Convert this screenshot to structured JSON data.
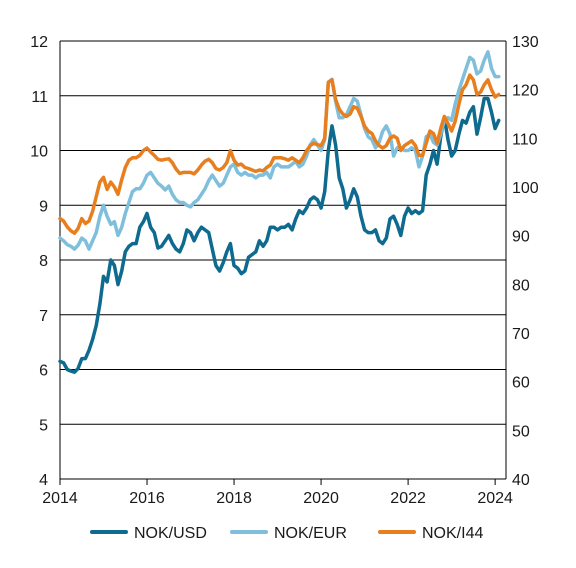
{
  "chart_data": {
    "type": "line",
    "title": "",
    "xlabel": "",
    "ylabel_left": "",
    "ylabel_right": "",
    "grid": true,
    "legend_position": "bottom",
    "xlim": [
      2014,
      2024.25
    ],
    "ylim_left": [
      4,
      12
    ],
    "ylim_right": [
      40,
      130
    ],
    "x_ticks": [
      "2014",
      "2016",
      "2018",
      "2020",
      "2022",
      "2024"
    ],
    "y_ticks_left": [
      "4",
      "5",
      "6",
      "7",
      "8",
      "9",
      "10",
      "11",
      "12"
    ],
    "y_ticks_right": [
      "40",
      "50",
      "60",
      "70",
      "80",
      "90",
      "100",
      "110",
      "120",
      "130"
    ],
    "series": [
      {
        "name": "NOK/USD",
        "axis": "left",
        "color": "#0e6b8f",
        "x": [
          2014.0,
          2014.083,
          2014.167,
          2014.25,
          2014.333,
          2014.417,
          2014.5,
          2014.583,
          2014.667,
          2014.75,
          2014.833,
          2014.917,
          2015.0,
          2015.083,
          2015.167,
          2015.25,
          2015.333,
          2015.417,
          2015.5,
          2015.583,
          2015.667,
          2015.75,
          2015.833,
          2015.917,
          2016.0,
          2016.083,
          2016.167,
          2016.25,
          2016.333,
          2016.417,
          2016.5,
          2016.583,
          2016.667,
          2016.75,
          2016.833,
          2016.917,
          2017.0,
          2017.083,
          2017.167,
          2017.25,
          2017.333,
          2017.417,
          2017.5,
          2017.583,
          2017.667,
          2017.75,
          2017.833,
          2017.917,
          2018.0,
          2018.083,
          2018.167,
          2018.25,
          2018.333,
          2018.417,
          2018.5,
          2018.583,
          2018.667,
          2018.75,
          2018.833,
          2018.917,
          2019.0,
          2019.083,
          2019.167,
          2019.25,
          2019.333,
          2019.417,
          2019.5,
          2019.583,
          2019.667,
          2019.75,
          2019.833,
          2019.917,
          2020.0,
          2020.083,
          2020.167,
          2020.25,
          2020.333,
          2020.417,
          2020.5,
          2020.583,
          2020.667,
          2020.75,
          2020.833,
          2020.917,
          2021.0,
          2021.083,
          2021.167,
          2021.25,
          2021.333,
          2021.417,
          2021.5,
          2021.583,
          2021.667,
          2021.75,
          2021.833,
          2021.917,
          2022.0,
          2022.083,
          2022.167,
          2022.25,
          2022.333,
          2022.417,
          2022.5,
          2022.583,
          2022.667,
          2022.75,
          2022.833,
          2022.917,
          2023.0,
          2023.083,
          2023.167,
          2023.25,
          2023.333,
          2023.417,
          2023.5,
          2023.583,
          2023.667,
          2023.75,
          2023.833,
          2023.917,
          2024.0,
          2024.083
        ],
        "y": [
          6.15,
          6.12,
          6.0,
          5.97,
          5.95,
          6.02,
          6.2,
          6.2,
          6.35,
          6.55,
          6.8,
          7.2,
          7.7,
          7.6,
          8.0,
          7.9,
          7.55,
          7.8,
          8.15,
          8.25,
          8.3,
          8.3,
          8.6,
          8.7,
          8.85,
          8.6,
          8.5,
          8.22,
          8.25,
          8.35,
          8.45,
          8.3,
          8.2,
          8.15,
          8.3,
          8.55,
          8.5,
          8.35,
          8.5,
          8.6,
          8.55,
          8.5,
          8.2,
          7.9,
          7.8,
          7.95,
          8.15,
          8.3,
          7.9,
          7.85,
          7.75,
          7.8,
          8.05,
          8.1,
          8.15,
          8.35,
          8.25,
          8.35,
          8.6,
          8.6,
          8.55,
          8.6,
          8.6,
          8.65,
          8.55,
          8.75,
          8.9,
          8.85,
          8.95,
          9.1,
          9.15,
          9.1,
          8.95,
          9.25,
          10.0,
          10.45,
          10.1,
          9.5,
          9.3,
          8.95,
          9.1,
          9.3,
          9.15,
          8.8,
          8.55,
          8.5,
          8.5,
          8.55,
          8.35,
          8.3,
          8.4,
          8.75,
          8.8,
          8.65,
          8.45,
          8.8,
          8.95,
          8.85,
          8.9,
          8.85,
          8.9,
          9.55,
          9.75,
          10.0,
          9.75,
          10.25,
          10.6,
          10.2,
          9.9,
          10.0,
          10.3,
          10.55,
          10.5,
          10.7,
          10.8,
          10.3,
          10.6,
          10.95,
          10.95,
          10.7,
          10.4,
          10.55
        ]
      },
      {
        "name": "NOK/EUR",
        "axis": "left",
        "color": "#7fbfdc",
        "x": [
          2014.0,
          2014.083,
          2014.167,
          2014.25,
          2014.333,
          2014.417,
          2014.5,
          2014.583,
          2014.667,
          2014.75,
          2014.833,
          2014.917,
          2015.0,
          2015.083,
          2015.167,
          2015.25,
          2015.333,
          2015.417,
          2015.5,
          2015.583,
          2015.667,
          2015.75,
          2015.833,
          2015.917,
          2016.0,
          2016.083,
          2016.167,
          2016.25,
          2016.333,
          2016.417,
          2016.5,
          2016.583,
          2016.667,
          2016.75,
          2016.833,
          2016.917,
          2017.0,
          2017.083,
          2017.167,
          2017.25,
          2017.333,
          2017.417,
          2017.5,
          2017.583,
          2017.667,
          2017.75,
          2017.833,
          2017.917,
          2018.0,
          2018.083,
          2018.167,
          2018.25,
          2018.333,
          2018.417,
          2018.5,
          2018.583,
          2018.667,
          2018.75,
          2018.833,
          2018.917,
          2019.0,
          2019.083,
          2019.167,
          2019.25,
          2019.333,
          2019.417,
          2019.5,
          2019.583,
          2019.667,
          2019.75,
          2019.833,
          2019.917,
          2020.0,
          2020.083,
          2020.167,
          2020.25,
          2020.333,
          2020.417,
          2020.5,
          2020.583,
          2020.667,
          2020.75,
          2020.833,
          2020.917,
          2021.0,
          2021.083,
          2021.167,
          2021.25,
          2021.333,
          2021.417,
          2021.5,
          2021.583,
          2021.667,
          2021.75,
          2021.833,
          2021.917,
          2022.0,
          2022.083,
          2022.167,
          2022.25,
          2022.333,
          2022.417,
          2022.5,
          2022.583,
          2022.667,
          2022.75,
          2022.833,
          2022.917,
          2023.0,
          2023.083,
          2023.167,
          2023.25,
          2023.333,
          2023.417,
          2023.5,
          2023.583,
          2023.667,
          2023.75,
          2023.833,
          2023.917,
          2024.0,
          2024.083
        ],
        "y": [
          8.4,
          8.35,
          8.28,
          8.25,
          8.2,
          8.27,
          8.4,
          8.35,
          8.2,
          8.35,
          8.5,
          8.8,
          9.0,
          8.8,
          8.65,
          8.7,
          8.45,
          8.6,
          8.85,
          9.05,
          9.25,
          9.3,
          9.3,
          9.4,
          9.55,
          9.6,
          9.5,
          9.4,
          9.35,
          9.28,
          9.35,
          9.2,
          9.1,
          9.05,
          9.05,
          9.0,
          8.97,
          9.05,
          9.1,
          9.2,
          9.3,
          9.45,
          9.55,
          9.45,
          9.35,
          9.4,
          9.55,
          9.7,
          9.75,
          9.6,
          9.55,
          9.6,
          9.55,
          9.55,
          9.5,
          9.55,
          9.55,
          9.6,
          9.5,
          9.7,
          9.75,
          9.7,
          9.7,
          9.7,
          9.75,
          9.8,
          9.7,
          9.75,
          9.9,
          10.1,
          10.2,
          10.1,
          10.0,
          10.2,
          11.25,
          11.3,
          10.9,
          10.6,
          10.6,
          10.65,
          10.8,
          10.95,
          10.9,
          10.65,
          10.4,
          10.25,
          10.2,
          10.05,
          10.15,
          10.35,
          10.45,
          10.3,
          9.9,
          10.05,
          10.05,
          10.0,
          10.0,
          10.05,
          10.0,
          9.7,
          9.9,
          10.25,
          10.3,
          10.15,
          10.1,
          10.3,
          10.55,
          10.6,
          10.55,
          10.85,
          11.1,
          11.3,
          11.5,
          11.7,
          11.65,
          11.4,
          11.45,
          11.65,
          11.8,
          11.5,
          11.35,
          11.35
        ]
      },
      {
        "name": "NOK/I44",
        "axis": "right",
        "color": "#e87f1e",
        "x": [
          2014.0,
          2014.083,
          2014.167,
          2014.25,
          2014.333,
          2014.417,
          2014.5,
          2014.583,
          2014.667,
          2014.75,
          2014.833,
          2014.917,
          2015.0,
          2015.083,
          2015.167,
          2015.25,
          2015.333,
          2015.417,
          2015.5,
          2015.583,
          2015.667,
          2015.75,
          2015.833,
          2015.917,
          2016.0,
          2016.083,
          2016.167,
          2016.25,
          2016.333,
          2016.417,
          2016.5,
          2016.583,
          2016.667,
          2016.75,
          2016.833,
          2016.917,
          2017.0,
          2017.083,
          2017.167,
          2017.25,
          2017.333,
          2017.417,
          2017.5,
          2017.583,
          2017.667,
          2017.75,
          2017.833,
          2017.917,
          2018.0,
          2018.083,
          2018.167,
          2018.25,
          2018.333,
          2018.417,
          2018.5,
          2018.583,
          2018.667,
          2018.75,
          2018.833,
          2018.917,
          2019.0,
          2019.083,
          2019.167,
          2019.25,
          2019.333,
          2019.417,
          2019.5,
          2019.583,
          2019.667,
          2019.75,
          2019.833,
          2019.917,
          2020.0,
          2020.083,
          2020.167,
          2020.25,
          2020.333,
          2020.417,
          2020.5,
          2020.583,
          2020.667,
          2020.75,
          2020.833,
          2020.917,
          2021.0,
          2021.083,
          2021.167,
          2021.25,
          2021.333,
          2021.417,
          2021.5,
          2021.583,
          2021.667,
          2021.75,
          2021.833,
          2021.917,
          2022.0,
          2022.083,
          2022.167,
          2022.25,
          2022.333,
          2022.417,
          2022.5,
          2022.583,
          2022.667,
          2022.75,
          2022.833,
          2022.917,
          2023.0,
          2023.083,
          2023.167,
          2023.25,
          2023.333,
          2023.417,
          2023.5,
          2023.583,
          2023.667,
          2023.75,
          2023.833,
          2023.917,
          2024.0,
          2024.083
        ],
        "y": [
          93.5,
          93.0,
          91.8,
          91.0,
          90.5,
          91.5,
          93.5,
          92.5,
          93.0,
          95.0,
          98.0,
          101.0,
          102.0,
          99.5,
          101.0,
          100.0,
          98.5,
          101.5,
          104.0,
          105.5,
          106.0,
          106.0,
          106.5,
          107.5,
          108.0,
          107.2,
          106.5,
          105.7,
          105.5,
          105.7,
          105.8,
          105.0,
          103.7,
          102.8,
          103.0,
          103.0,
          103.0,
          102.7,
          103.5,
          104.5,
          105.3,
          105.7,
          105.0,
          103.8,
          103.5,
          104.0,
          105.0,
          107.5,
          105.5,
          104.5,
          104.7,
          104.0,
          103.8,
          103.5,
          103.2,
          103.5,
          103.3,
          104.0,
          104.5,
          106.0,
          106.0,
          106.0,
          105.8,
          105.5,
          106.0,
          105.5,
          105.0,
          106.0,
          107.5,
          108.5,
          109.0,
          108.7,
          108.5,
          110.0,
          121.5,
          122.0,
          118.0,
          116.0,
          115.0,
          114.5,
          115.0,
          116.5,
          116.2,
          114.5,
          112.5,
          111.5,
          111.0,
          109.5,
          108.5,
          108.0,
          108.5,
          110.0,
          110.5,
          110.0,
          107.5,
          108.5,
          109.0,
          109.5,
          108.5,
          106.5,
          106.5,
          109.0,
          111.5,
          111.0,
          109.0,
          112.0,
          114.5,
          113.0,
          111.5,
          113.5,
          117.0,
          120.0,
          121.0,
          123.0,
          122.0,
          119.0,
          119.5,
          121.0,
          122.0,
          120.0,
          118.5,
          119.0
        ]
      }
    ]
  }
}
